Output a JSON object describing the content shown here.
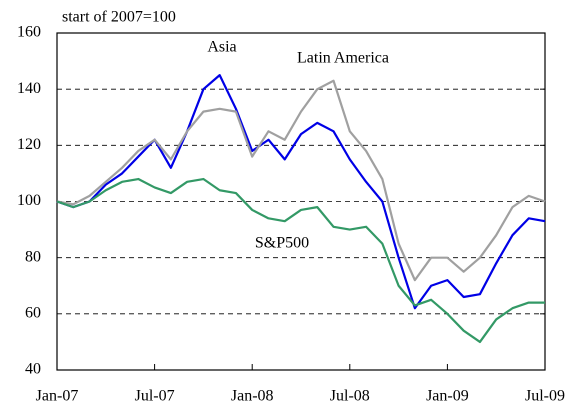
{
  "chart_data": {
    "type": "line",
    "annotations": [
      "start of 2007=100",
      "Asia",
      "Latin America",
      "S&P500"
    ],
    "categories": [
      "Jan-07",
      null,
      null,
      null,
      null,
      null,
      "Jul-07",
      null,
      null,
      null,
      null,
      null,
      "Jan-08",
      null,
      null,
      null,
      null,
      null,
      "Jul-08",
      null,
      null,
      null,
      null,
      null,
      "Jan-09",
      null,
      null,
      null,
      null,
      null,
      "Jul-09"
    ],
    "series": [
      {
        "name": "Asia",
        "color": "#0000e6",
        "values": [
          100,
          98,
          100,
          106,
          110,
          116,
          122,
          112,
          125,
          140,
          145,
          133,
          118,
          122,
          115,
          124,
          128,
          125,
          115,
          107,
          100,
          80,
          62,
          70,
          72,
          66,
          67,
          78,
          88,
          94,
          93
        ]
      },
      {
        "name": "Latin America",
        "color": "#a0a0a0",
        "values": [
          100,
          99,
          102,
          107,
          112,
          118,
          122,
          115,
          125,
          132,
          133,
          132,
          116,
          125,
          122,
          132,
          140,
          143,
          125,
          118,
          108,
          85,
          72,
          80,
          80,
          75,
          80,
          88,
          98,
          102,
          100
        ]
      },
      {
        "name": "S&P500",
        "color": "#339966",
        "values": [
          100,
          98,
          100,
          104,
          107,
          108,
          105,
          103,
          107,
          108,
          104,
          103,
          97,
          94,
          93,
          97,
          98,
          91,
          90,
          91,
          85,
          70,
          63,
          65,
          60,
          54,
          50,
          58,
          62,
          64,
          64
        ]
      }
    ],
    "ylim": [
      40,
      160
    ],
    "yticks": [
      40,
      60,
      80,
      100,
      120,
      140,
      160
    ],
    "grid": true
  }
}
